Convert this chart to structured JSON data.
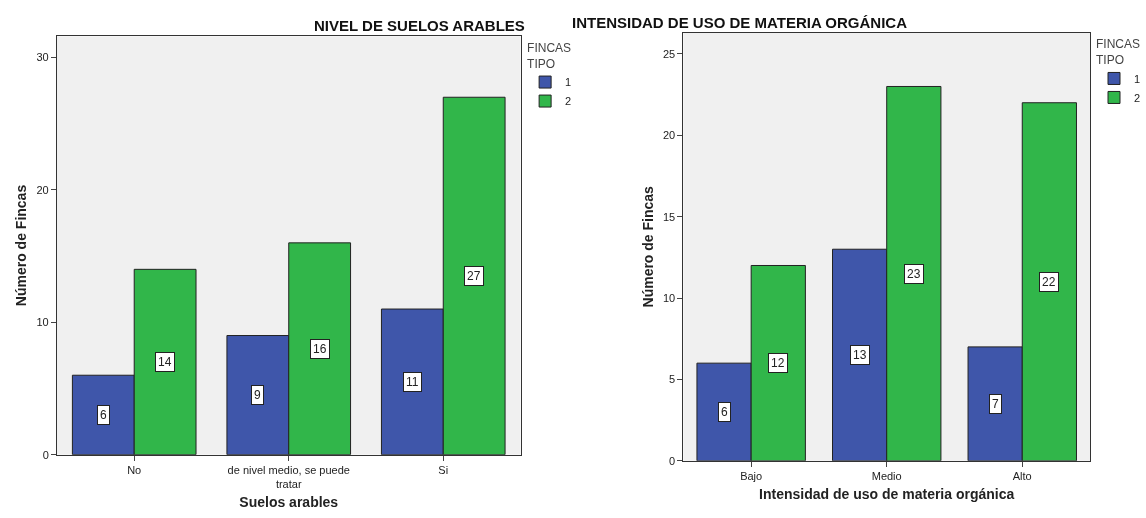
{
  "chart_data": [
    {
      "type": "bar",
      "title": "NIVEL DE SUELOS ARABLES",
      "xlabel": "Suelos arables",
      "ylabel": "Número de Fincas",
      "legend_title": "FINCAS\nTIPO",
      "categories": [
        "No",
        "de nivel medio, se puede\ntratar",
        "Si"
      ],
      "series": [
        {
          "name": "1",
          "color": "#3f56aa",
          "values": [
            6,
            9,
            11
          ]
        },
        {
          "name": "2",
          "color": "#31b64a",
          "values": [
            14,
            16,
            27
          ]
        }
      ],
      "ylim": [
        0,
        31.6
      ],
      "yticks": [
        0,
        10,
        20,
        30
      ],
      "grid": false,
      "legend": "top right",
      "data_labels": true
    },
    {
      "type": "bar",
      "title": "INTENSIDAD DE USO DE MATERIA ORGÁNICA",
      "xlabel": "Intensidad de uso de materia orgánica",
      "ylabel": "Número de Fincas",
      "legend_title": "FINCAS\nTIPO",
      "categories": [
        "Bajo",
        "Medio",
        "Alto"
      ],
      "series": [
        {
          "name": "1",
          "color": "#3f56aa",
          "values": [
            6,
            13,
            7
          ]
        },
        {
          "name": "2",
          "color": "#31b64a",
          "values": [
            12,
            23,
            22
          ]
        }
      ],
      "ylim": [
        0,
        26.3
      ],
      "yticks": [
        0,
        5,
        10,
        15,
        20,
        25
      ],
      "grid": false,
      "legend": "top right",
      "data_labels": true
    }
  ]
}
